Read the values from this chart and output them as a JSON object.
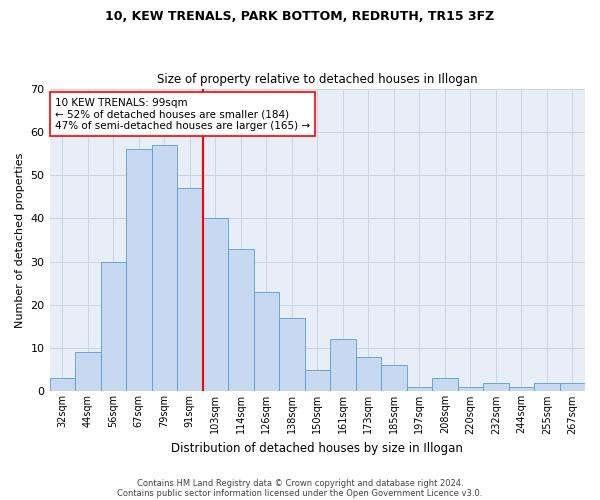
{
  "title1": "10, KEW TRENALS, PARK BOTTOM, REDRUTH, TR15 3FZ",
  "title2": "Size of property relative to detached houses in Illogan",
  "xlabel": "Distribution of detached houses by size in Illogan",
  "ylabel": "Number of detached properties",
  "categories": [
    "32sqm",
    "44sqm",
    "56sqm",
    "67sqm",
    "79sqm",
    "91sqm",
    "103sqm",
    "114sqm",
    "126sqm",
    "138sqm",
    "150sqm",
    "161sqm",
    "173sqm",
    "185sqm",
    "197sqm",
    "208sqm",
    "220sqm",
    "232sqm",
    "244sqm",
    "255sqm",
    "267sqm"
  ],
  "values": [
    3,
    9,
    30,
    56,
    57,
    47,
    40,
    33,
    23,
    17,
    5,
    12,
    8,
    6,
    1,
    3,
    1,
    2,
    1,
    2,
    2
  ],
  "bar_color": "#c6d9f0",
  "bar_edge_color": "#5b9bd5",
  "vline_x": 5.5,
  "vline_color": "red",
  "annotation_text": "10 KEW TRENALS: 99sqm\n← 52% of detached houses are smaller (184)\n47% of semi-detached houses are larger (165) →",
  "annotation_box_color": "white",
  "annotation_box_edge": "red",
  "ylim": [
    0,
    70
  ],
  "yticks": [
    0,
    10,
    20,
    30,
    40,
    50,
    60,
    70
  ],
  "grid_color": "#c8d4e8",
  "background_color": "#e8eef8",
  "footer1": "Contains HM Land Registry data © Crown copyright and database right 2024.",
  "footer2": "Contains public sector information licensed under the Open Government Licence v3.0."
}
